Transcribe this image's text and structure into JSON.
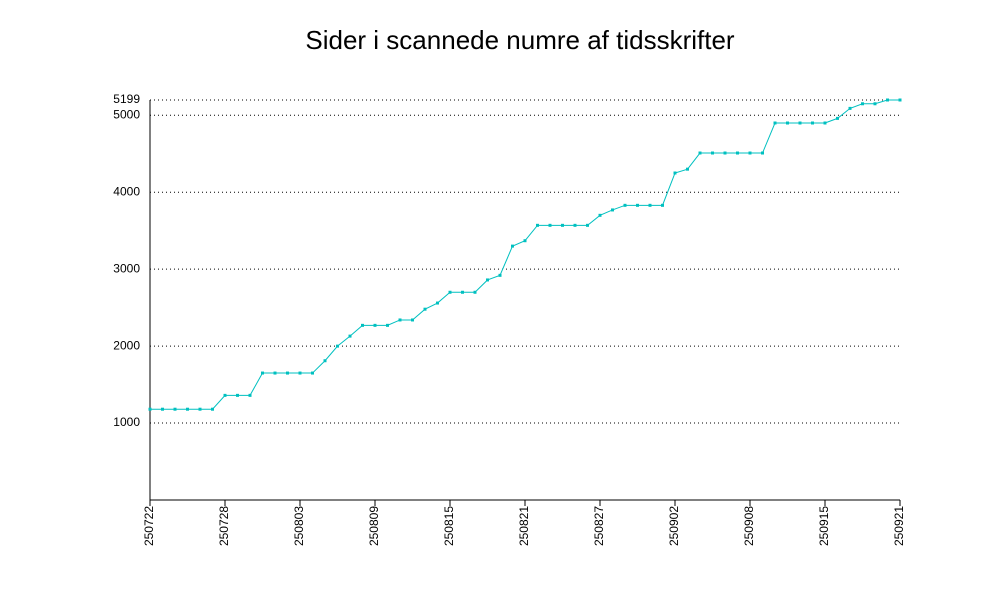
{
  "chart_data": {
    "type": "line",
    "title": "Sider i scannede numre af tidsskrifter",
    "categories": [
      "250722",
      null,
      null,
      null,
      null,
      null,
      "250728",
      null,
      null,
      null,
      null,
      null,
      "250803",
      null,
      null,
      null,
      null,
      null,
      "250809",
      null,
      null,
      null,
      null,
      null,
      "250815",
      null,
      null,
      null,
      null,
      null,
      "250821",
      null,
      null,
      null,
      null,
      null,
      "250827",
      null,
      null,
      null,
      null,
      null,
      "250902",
      null,
      null,
      null,
      null,
      null,
      "250908",
      null,
      null,
      null,
      null,
      null,
      "250915",
      null,
      null,
      null,
      null,
      null,
      "250921"
    ],
    "values": [
      1180,
      1180,
      1180,
      1180,
      1180,
      1180,
      1360,
      1360,
      1360,
      1650,
      1650,
      1650,
      1650,
      1650,
      1810,
      2000,
      2130,
      2270,
      2270,
      2270,
      2340,
      2340,
      2480,
      2560,
      2700,
      2700,
      2700,
      2860,
      2920,
      3300,
      3370,
      3570,
      3570,
      3570,
      3570,
      3570,
      3700,
      3770,
      3830,
      3830,
      3830,
      3830,
      4250,
      4300,
      4510,
      4510,
      4510,
      4510,
      4510,
      4510,
      4900,
      4900,
      4900,
      4900,
      4900,
      4960,
      5090,
      5150,
      5150,
      5199,
      5199
    ],
    "color": "#00c0c0",
    "ylim": [
      0,
      5199
    ],
    "yticks": [
      1000,
      2000,
      3000,
      4000,
      5000,
      5199
    ],
    "grid": true
  }
}
